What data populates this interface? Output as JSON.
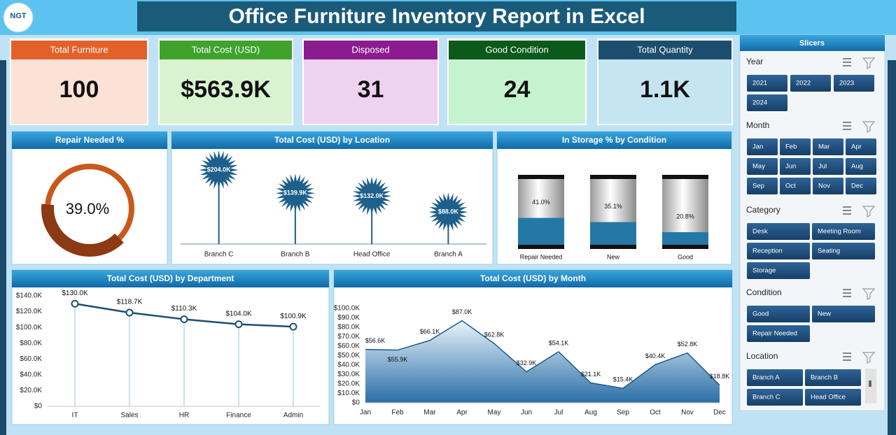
{
  "header": {
    "logo": "NGT",
    "title": "Office Furniture Inventory Report in Excel"
  },
  "kpis": [
    {
      "label": "Total Furniture",
      "value": "100"
    },
    {
      "label": "Total Cost (USD)",
      "value": "$563.9K"
    },
    {
      "label": "Disposed",
      "value": "31"
    },
    {
      "label": "Good Condition",
      "value": "24"
    },
    {
      "label": "Total Quantity",
      "value": "1.1K"
    }
  ],
  "chart_data": [
    {
      "type": "donut",
      "title": "Repair Needed %",
      "values": [
        39.0
      ],
      "value_labels": [
        "39.0%"
      ],
      "color": "#8b3a14",
      "track_color": "#c9581c"
    },
    {
      "type": "lollipop",
      "title": "Total Cost (USD) by Location",
      "categories": [
        "Branch C",
        "Branch B",
        "Head Office",
        "Branch A"
      ],
      "values": [
        204000,
        139900,
        132000,
        88000
      ],
      "value_labels": [
        "$204.0K",
        "$139.9K",
        "$132.0K",
        "$88.0K"
      ],
      "color": "#1f5f8b"
    },
    {
      "type": "cylinder",
      "title": "In Storage % by Condition",
      "categories": [
        "Repair Needed",
        "New",
        "Good"
      ],
      "values": [
        41.0,
        35.1,
        20.8
      ],
      "value_labels": [
        "41.0%",
        "35.1%",
        "20.8%"
      ],
      "color": "#2378a8"
    },
    {
      "type": "line",
      "title": "Total Cost (USD) by Department",
      "categories": [
        "IT",
        "Sales",
        "HR",
        "Finance",
        "Admin"
      ],
      "values": [
        130000,
        118700,
        110300,
        104000,
        100900
      ],
      "value_labels": [
        "$130.0K",
        "$118.7K",
        "$110.3K",
        "$104.0K",
        "$100.9K"
      ],
      "color": "#1d4f72",
      "ylim": [
        0,
        140000
      ],
      "yticks": [
        {
          "value": 0,
          "label": "$0"
        },
        {
          "value": 20000,
          "label": "$20.0K"
        },
        {
          "value": 40000,
          "label": "$40.0K"
        },
        {
          "value": 60000,
          "label": "$60.0K"
        },
        {
          "value": 80000,
          "label": "$80.0K"
        },
        {
          "value": 100000,
          "label": "$100.0K"
        },
        {
          "value": 120000,
          "label": "$120.0K"
        },
        {
          "value": 140000,
          "label": "$140.0K"
        }
      ]
    },
    {
      "type": "area",
      "title": "Total Cost (USD) by Month",
      "categories": [
        "Jan",
        "Feb",
        "Mar",
        "Apr",
        "May",
        "Jun",
        "Jul",
        "Aug",
        "Sep",
        "Oct",
        "Nov",
        "Dec"
      ],
      "values": [
        56600,
        55900,
        66100,
        87000,
        62800,
        32900,
        54100,
        21100,
        15400,
        40400,
        52800,
        18800
      ],
      "value_labels": [
        "$56.6K",
        "$55.9K",
        "$66.1K",
        "$87.0K",
        "$62.8K",
        "$32.9K",
        "$54.1K",
        "$21.1K",
        "$15.4K",
        "$40.4K",
        "$52.8K",
        "$18.8K"
      ],
      "color": "#2a6ea6",
      "ylim": [
        0,
        100000
      ],
      "yticks": [
        {
          "value": 0,
          "label": "$0"
        },
        {
          "value": 10000,
          "label": "$10.0K"
        },
        {
          "value": 20000,
          "label": "$20.0K"
        },
        {
          "value": 30000,
          "label": "$30.0K"
        },
        {
          "value": 40000,
          "label": "$40.0K"
        },
        {
          "value": 50000,
          "label": "$50.0K"
        },
        {
          "value": 60000,
          "label": "$60.0K"
        },
        {
          "value": 70000,
          "label": "$70.0K"
        },
        {
          "value": 80000,
          "label": "$80.0K"
        },
        {
          "value": 90000,
          "label": "$90.0K"
        },
        {
          "value": 100000,
          "label": "$100.0K"
        }
      ]
    }
  ],
  "slicers": {
    "title": "Slicers",
    "groups": [
      {
        "title": "Year",
        "items": [
          "2021",
          "2022",
          "2023",
          "2024"
        ]
      },
      {
        "title": "Month",
        "items": [
          "Jan",
          "Feb",
          "Mar",
          "Apr",
          "May",
          "Jun",
          "Jul",
          "Aug",
          "Sep",
          "Oct",
          "Nov",
          "Dec"
        ]
      },
      {
        "title": "Category",
        "items": [
          "Desk",
          "Meeting Room",
          "Reception",
          "Seating",
          "Storage"
        ]
      },
      {
        "title": "Condition",
        "items": [
          "Good",
          "New",
          "Repair Needed"
        ]
      },
      {
        "title": "Location",
        "items": [
          "Branch A",
          "Branch B",
          "Branch C",
          "Head Office"
        ]
      }
    ]
  }
}
